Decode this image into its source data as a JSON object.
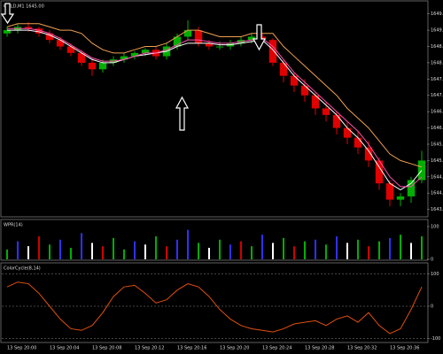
{
  "chart_data": [
    {
      "type": "candlestick",
      "title": "GOLD,M1  1645.00",
      "open": [
        1648.9,
        1649.0,
        1649.1,
        1649.05,
        1648.9,
        1648.7,
        1648.5,
        1648.3,
        1648.0,
        1647.8,
        1648.0,
        1648.1,
        1648.2,
        1648.3,
        1648.4,
        1648.2,
        1648.5,
        1648.8,
        1649.0,
        1648.6,
        1648.5,
        1648.5,
        1648.6,
        1648.7,
        1648.8,
        1648.7,
        1648.0,
        1647.6,
        1647.3,
        1647.0,
        1646.6,
        1646.4,
        1646.0,
        1645.7,
        1645.4,
        1645.0,
        1644.3,
        1643.8,
        1643.9,
        1644.4
      ],
      "high": [
        1649.1,
        1649.2,
        1649.25,
        1649.1,
        1649.0,
        1648.8,
        1648.6,
        1648.4,
        1648.1,
        1648.1,
        1648.2,
        1648.3,
        1648.35,
        1648.45,
        1648.5,
        1648.6,
        1648.9,
        1649.3,
        1649.1,
        1648.7,
        1648.65,
        1648.7,
        1648.8,
        1648.9,
        1648.9,
        1648.75,
        1648.1,
        1647.7,
        1647.5,
        1647.1,
        1646.8,
        1646.5,
        1646.2,
        1645.9,
        1645.6,
        1645.1,
        1644.4,
        1644.0,
        1644.5,
        1645.3
      ],
      "low": [
        1648.8,
        1648.9,
        1648.95,
        1648.8,
        1648.6,
        1648.4,
        1648.2,
        1647.9,
        1647.6,
        1647.7,
        1647.9,
        1648.0,
        1648.1,
        1648.2,
        1648.1,
        1648.1,
        1648.4,
        1648.7,
        1648.5,
        1648.4,
        1648.4,
        1648.4,
        1648.5,
        1648.6,
        1648.6,
        1647.9,
        1647.4,
        1647.1,
        1646.8,
        1646.4,
        1646.2,
        1645.8,
        1645.5,
        1645.2,
        1644.8,
        1644.1,
        1643.6,
        1643.6,
        1643.7,
        1644.3
      ],
      "close": [
        1649.0,
        1649.1,
        1649.05,
        1648.9,
        1648.7,
        1648.5,
        1648.3,
        1648.0,
        1647.8,
        1648.0,
        1648.1,
        1648.2,
        1648.3,
        1648.4,
        1648.2,
        1648.5,
        1648.8,
        1649.0,
        1648.6,
        1648.5,
        1648.5,
        1648.6,
        1648.7,
        1648.8,
        1648.7,
        1648.0,
        1647.6,
        1647.3,
        1647.0,
        1646.6,
        1646.4,
        1646.0,
        1645.7,
        1645.4,
        1645.0,
        1644.3,
        1643.8,
        1643.9,
        1644.4,
        1645.0
      ],
      "up_color": "#00b000",
      "down_color": "#e00000",
      "series": [
        {
          "color": "#ffffff",
          "values": [
            1649.0,
            1649.0,
            1649.0,
            1648.95,
            1648.85,
            1648.7,
            1648.5,
            1648.3,
            1648.1,
            1648.0,
            1648.0,
            1648.1,
            1648.2,
            1648.25,
            1648.3,
            1648.35,
            1648.5,
            1648.6,
            1648.6,
            1648.6,
            1648.55,
            1648.55,
            1648.6,
            1648.65,
            1648.7,
            1648.4,
            1648.0,
            1647.6,
            1647.3,
            1647.0,
            1646.7,
            1646.4,
            1646.0,
            1645.7,
            1645.3,
            1644.8,
            1644.3,
            1644.1,
            1644.3,
            1644.7
          ]
        },
        {
          "color": "#ff4fb0",
          "values": [
            1649.05,
            1649.05,
            1649.05,
            1649.0,
            1648.9,
            1648.75,
            1648.55,
            1648.35,
            1648.15,
            1648.05,
            1648.05,
            1648.1,
            1648.2,
            1648.3,
            1648.3,
            1648.4,
            1648.55,
            1648.7,
            1648.7,
            1648.65,
            1648.6,
            1648.6,
            1648.65,
            1648.7,
            1648.75,
            1648.5,
            1648.1,
            1647.7,
            1647.4,
            1647.1,
            1646.8,
            1646.5,
            1646.2,
            1645.9,
            1645.5,
            1645.0,
            1644.5,
            1644.2,
            1644.2,
            1644.5
          ]
        },
        {
          "color": "#f0a050",
          "values": [
            1649.1,
            1649.2,
            1649.2,
            1649.2,
            1649.1,
            1649.0,
            1649.0,
            1648.9,
            1648.6,
            1648.4,
            1648.3,
            1648.3,
            1648.4,
            1648.5,
            1648.5,
            1648.6,
            1648.8,
            1649.0,
            1649.0,
            1648.9,
            1648.8,
            1648.8,
            1648.8,
            1648.9,
            1648.9,
            1648.9,
            1648.5,
            1648.2,
            1647.9,
            1647.6,
            1647.3,
            1647.0,
            1646.6,
            1646.3,
            1646.0,
            1645.6,
            1645.2,
            1645.0,
            1644.9,
            1644.8
          ]
        }
      ],
      "ylim": [
        1643.3,
        1649.6
      ],
      "yticks": [
        1643.5,
        {
          "value": 1644,
          "label": "1644.0"
        },
        1644.5,
        {
          "value": 1645,
          "label": "1645.0"
        },
        1645.5,
        {
          "value": 1646,
          "label": "1646.0"
        },
        1646.5,
        {
          "value": 1647,
          "label": "1647.0"
        },
        1647.5,
        {
          "value": 1648,
          "label": "1648.0"
        },
        1648.5,
        {
          "value": 1649,
          "label": "1649.0"
        },
        1649.5
      ]
    },
    {
      "type": "bar",
      "title": "WPR(14)",
      "values": [
        30,
        55,
        40,
        70,
        45,
        60,
        35,
        80,
        50,
        40,
        65,
        30,
        55,
        45,
        70,
        40,
        60,
        90,
        50,
        35,
        60,
        45,
        55,
        40,
        75,
        50,
        65,
        40,
        55,
        60,
        45,
        70,
        50,
        60,
        40,
        55,
        65,
        75,
        50,
        70
      ],
      "colors": [
        "#00b000",
        "#3030ff",
        "#ffffff",
        "#d00000",
        "#00b000",
        "#3030ff",
        "#00b000",
        "#3030ff",
        "#ffffff",
        "#d00000",
        "#00b000",
        "#00b000",
        "#3030ff",
        "#ffffff",
        "#00b000",
        "#d00000",
        "#3030ff",
        "#3030ff",
        "#00b000",
        "#ffffff",
        "#00b000",
        "#3030ff",
        "#d00000",
        "#00b000",
        "#3030ff",
        "#ffffff",
        "#00b000",
        "#d00000",
        "#00b000",
        "#3030ff",
        "#00b000",
        "#3030ff",
        "#ffffff",
        "#00b000",
        "#d00000",
        "#00b000",
        "#3030ff",
        "#00b000",
        "#ffffff",
        "#00b000"
      ],
      "ylim": [
        0,
        100
      ],
      "yticks": [
        0,
        100
      ]
    },
    {
      "type": "line",
      "title": "ColorCycle(8,14)",
      "values": [
        60,
        75,
        70,
        40,
        0,
        -40,
        -70,
        -75,
        -60,
        -20,
        30,
        60,
        65,
        40,
        10,
        20,
        50,
        70,
        60,
        30,
        -10,
        -40,
        -60,
        -70,
        -75,
        -80,
        -70,
        -55,
        -50,
        -45,
        -60,
        -40,
        -30,
        -50,
        -20,
        -60,
        -85,
        -70,
        -10,
        60
      ],
      "color": "#e05010",
      "ylim": [
        -110,
        110
      ],
      "yticks": [
        -100,
        0,
        100
      ],
      "grid": true,
      "categories": [
        "13 Sep 20:00",
        null,
        null,
        null,
        "13 Sep 20:04",
        null,
        null,
        null,
        "13 Sep 20:08",
        null,
        null,
        null,
        "13 Sep 20:12",
        null,
        null,
        null,
        "13 Sep 20:16",
        null,
        null,
        null,
        "13 Sep 20:20",
        null,
        null,
        null,
        "13 Sep 20:24",
        null,
        null,
        null,
        "13 Sep 20:28",
        null,
        null,
        null,
        "13 Sep 20:32",
        null,
        null,
        null,
        "13 Sep 20:36",
        null,
        null,
        null
      ]
    }
  ]
}
